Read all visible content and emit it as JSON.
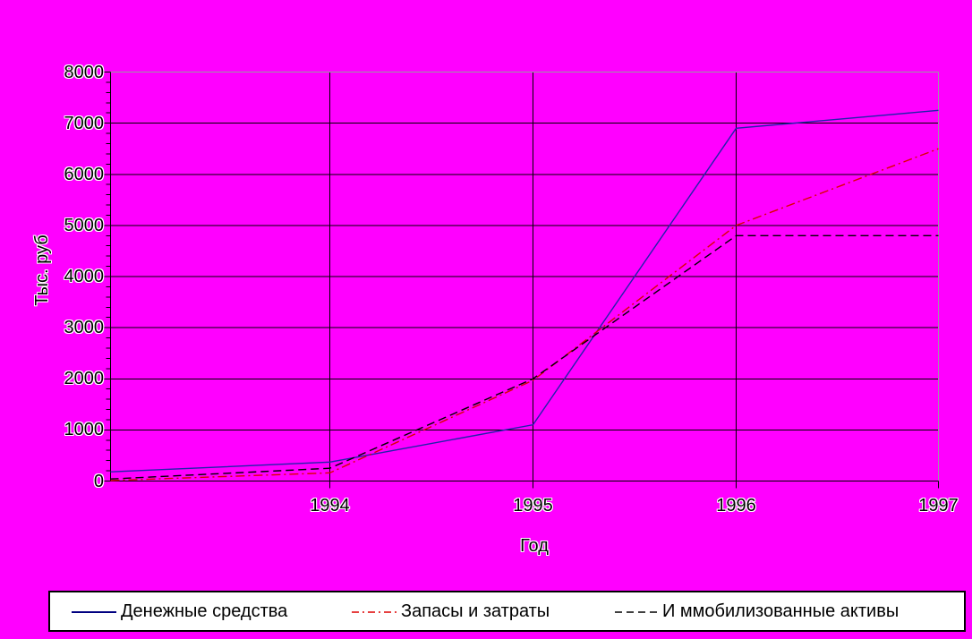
{
  "chart_data": {
    "type": "line",
    "title": "",
    "xlabel": "Год",
    "ylabel": "Тыс. руб",
    "background_color": "#FF00FF",
    "plot_border_color": "#9A9AA0",
    "gridline_color": "#000000",
    "grid": true,
    "legend_position": "bottom",
    "x": [
      1993,
      1994,
      1995,
      1996,
      1997
    ],
    "x_tick_labels": [
      "1994",
      "1995",
      "1996",
      "1997"
    ],
    "y_tick_labels": [
      "0",
      "1000",
      "2000",
      "3000",
      "4000",
      "5000",
      "6000",
      "7000",
      "8000"
    ],
    "ylim": [
      0,
      8000
    ],
    "y_major_step": 1000,
    "y_minor_step": 200,
    "series": [
      {
        "name": "Денежные средства",
        "color": "#2222AA",
        "line_style": "solid",
        "values": [
          180,
          370,
          1100,
          6900,
          7250
        ]
      },
      {
        "name": "Запасы и затраты",
        "color": "#DD0000",
        "line_style": "dash-dot",
        "values": [
          10,
          160,
          1970,
          5000,
          6500
        ]
      },
      {
        "name": "И ммобилизованные активы",
        "color": "#000000",
        "line_style": "dashed",
        "values": [
          40,
          250,
          2000,
          4800,
          4800
        ]
      }
    ]
  }
}
